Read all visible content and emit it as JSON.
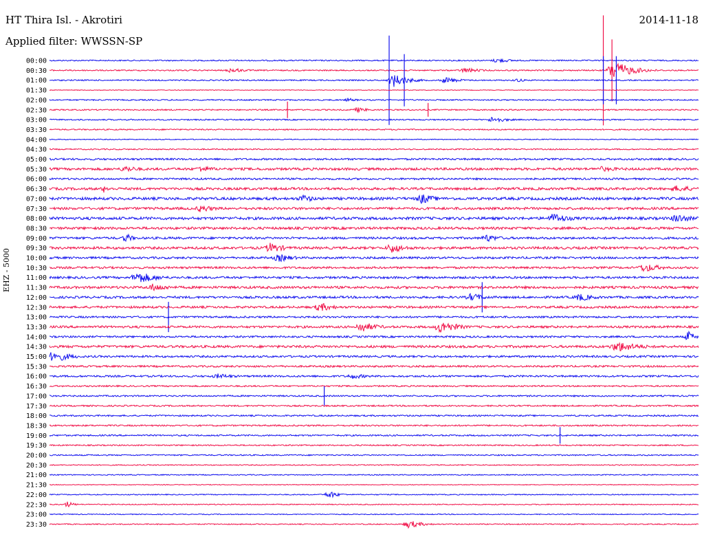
{
  "header": {
    "station": "HT Thira Isl. - Akrotiri",
    "filter": "Applied filter: WWSSN-SP",
    "date": "2014-11-18",
    "channel": "EHZ - 5000"
  },
  "colors": {
    "even_row": "#1010ee",
    "odd_row": "#f01048"
  },
  "chart_data": {
    "type": "line",
    "title": "HT Thira Isl. - Akrotiri",
    "subtitle": "Applied filter: WWSSN-SP",
    "ylabel": "EHZ - 5000",
    "x_span_minutes": 30,
    "y_tick_labels": [
      "00:00",
      "00:30",
      "01:00",
      "01:30",
      "02:00",
      "02:30",
      "03:00",
      "03:30",
      "04:00",
      "04:30",
      "05:00",
      "05:30",
      "06:00",
      "06:30",
      "07:00",
      "07:30",
      "08:00",
      "08:30",
      "09:00",
      "09:30",
      "10:00",
      "10:30",
      "11:00",
      "11:30",
      "12:00",
      "12:30",
      "13:00",
      "13:30",
      "14:00",
      "14:30",
      "15:00",
      "15:30",
      "16:00",
      "16:30",
      "17:00",
      "17:30",
      "18:00",
      "18:30",
      "19:00",
      "19:30",
      "20:00",
      "20:30",
      "21:00",
      "21:30",
      "22:00",
      "22:30",
      "23:00",
      "23:30"
    ],
    "noise_level": [
      1,
      1,
      1,
      0.5,
      1,
      1,
      1,
      1,
      0.7,
      1,
      1.5,
      2,
      1.5,
      2,
      2.2,
      2,
      2.2,
      2,
      1.8,
      2,
      1.7,
      1.7,
      1.8,
      2,
      1.8,
      1.8,
      1.5,
      1.8,
      1.5,
      2,
      1.6,
      1.5,
      1.5,
      1.2,
      1.2,
      1.2,
      1.2,
      1.2,
      1.2,
      1.0,
      1.0,
      0.8,
      0.8,
      0.6,
      0.8,
      0.8,
      0.7,
      0.8
    ],
    "events": [
      {
        "row": 0,
        "minute": 20.7,
        "amp": 4,
        "duration": 1.2,
        "kind": "burst"
      },
      {
        "row": 1,
        "minute": 8.4,
        "amp": 4,
        "duration": 1.2,
        "kind": "burst"
      },
      {
        "row": 1,
        "minute": 19.2,
        "amp": 4,
        "duration": 1.4,
        "kind": "burst"
      },
      {
        "row": 1,
        "minute": 26.1,
        "amp": 14,
        "duration": 1.5,
        "kind": "burst"
      },
      {
        "row": 1,
        "minute": 25.6,
        "amp": 80,
        "duration": 0.1,
        "kind": "spike"
      },
      {
        "row": 1,
        "minute": 26.0,
        "amp": 45,
        "duration": 0.1,
        "kind": "spike"
      },
      {
        "row": 2,
        "minute": 15.9,
        "amp": 10,
        "duration": 1.2,
        "kind": "burst"
      },
      {
        "row": 2,
        "minute": 18.3,
        "amp": 5,
        "duration": 1.2,
        "kind": "burst"
      },
      {
        "row": 2,
        "minute": 21.6,
        "amp": 3,
        "duration": 0.8,
        "kind": "burst"
      },
      {
        "row": 2,
        "minute": 15.7,
        "amp": 65,
        "duration": 0.1,
        "kind": "spike"
      },
      {
        "row": 2,
        "minute": 16.4,
        "amp": 38,
        "duration": 0.1,
        "kind": "spike"
      },
      {
        "row": 2,
        "minute": 25.6,
        "amp": 35,
        "duration": 0.1,
        "kind": "spike"
      },
      {
        "row": 2,
        "minute": 26.2,
        "amp": 35,
        "duration": 0.1,
        "kind": "spike"
      },
      {
        "row": 4,
        "minute": 13.8,
        "amp": 3,
        "duration": 0.8,
        "kind": "burst"
      },
      {
        "row": 5,
        "minute": 14.2,
        "amp": 4,
        "duration": 1,
        "kind": "burst"
      },
      {
        "row": 5,
        "minute": 11.0,
        "amp": 12,
        "duration": 0.1,
        "kind": "spike"
      },
      {
        "row": 5,
        "minute": 17.5,
        "amp": 10,
        "duration": 0.1,
        "kind": "spike"
      },
      {
        "row": 6,
        "minute": 20.5,
        "amp": 5,
        "duration": 1.2,
        "kind": "burst"
      },
      {
        "row": 11,
        "minute": 3.5,
        "amp": 5,
        "duration": 1.4,
        "kind": "burst"
      },
      {
        "row": 11,
        "minute": 7.0,
        "amp": 5,
        "duration": 1.4,
        "kind": "burst"
      },
      {
        "row": 11,
        "minute": 25.5,
        "amp": 4,
        "duration": 2,
        "kind": "burst"
      },
      {
        "row": 13,
        "minute": 2.5,
        "amp": 6,
        "duration": 0.6,
        "kind": "burst"
      },
      {
        "row": 13,
        "minute": 29.0,
        "amp": 5,
        "duration": 2,
        "kind": "burst"
      },
      {
        "row": 14,
        "minute": 11.7,
        "amp": 6,
        "duration": 1.2,
        "kind": "burst"
      },
      {
        "row": 14,
        "minute": 17.2,
        "amp": 8,
        "duration": 1.2,
        "kind": "burst"
      },
      {
        "row": 15,
        "minute": 7.0,
        "amp": 6,
        "duration": 1.2,
        "kind": "burst"
      },
      {
        "row": 16,
        "minute": 23.3,
        "amp": 8,
        "duration": 1.4,
        "kind": "burst"
      },
      {
        "row": 16,
        "minute": 29.0,
        "amp": 7,
        "duration": 1.4,
        "kind": "burst"
      },
      {
        "row": 18,
        "minute": 3.5,
        "amp": 8,
        "duration": 0.6,
        "kind": "burst"
      },
      {
        "row": 18,
        "minute": 20.2,
        "amp": 6,
        "duration": 1.2,
        "kind": "burst"
      },
      {
        "row": 19,
        "minute": 10.2,
        "amp": 8,
        "duration": 1.2,
        "kind": "burst"
      },
      {
        "row": 19,
        "minute": 15.8,
        "amp": 8,
        "duration": 1.2,
        "kind": "burst"
      },
      {
        "row": 20,
        "minute": 10.6,
        "amp": 6,
        "duration": 1.4,
        "kind": "burst"
      },
      {
        "row": 21,
        "minute": 27.5,
        "amp": 7,
        "duration": 1.4,
        "kind": "burst"
      },
      {
        "row": 22,
        "minute": 4.1,
        "amp": 9,
        "duration": 1.6,
        "kind": "burst"
      },
      {
        "row": 23,
        "minute": 4.8,
        "amp": 6,
        "duration": 1.6,
        "kind": "burst"
      },
      {
        "row": 24,
        "minute": 19.5,
        "amp": 6,
        "duration": 1.4,
        "kind": "burst"
      },
      {
        "row": 24,
        "minute": 24.5,
        "amp": 6,
        "duration": 1.4,
        "kind": "burst"
      },
      {
        "row": 24,
        "minute": 20.0,
        "amp": 22,
        "duration": 0.1,
        "kind": "spike"
      },
      {
        "row": 25,
        "minute": 12.5,
        "amp": 7,
        "duration": 1.2,
        "kind": "burst"
      },
      {
        "row": 26,
        "minute": 5.5,
        "amp": 22,
        "duration": 0.1,
        "kind": "spike"
      },
      {
        "row": 27,
        "minute": 14.4,
        "amp": 8,
        "duration": 1.4,
        "kind": "burst"
      },
      {
        "row": 27,
        "minute": 18.1,
        "amp": 10,
        "duration": 1.4,
        "kind": "burst"
      },
      {
        "row": 28,
        "minute": 29.5,
        "amp": 9,
        "duration": 0.6,
        "kind": "burst"
      },
      {
        "row": 29,
        "minute": 26.3,
        "amp": 8,
        "duration": 2,
        "kind": "burst"
      },
      {
        "row": 30,
        "minute": 0.2,
        "amp": 9,
        "duration": 1.4,
        "kind": "burst"
      },
      {
        "row": 32,
        "minute": 7.8,
        "amp": 4,
        "duration": 1.6,
        "kind": "burst"
      },
      {
        "row": 32,
        "minute": 14.0,
        "amp": 4,
        "duration": 1.6,
        "kind": "burst"
      },
      {
        "row": 34,
        "minute": 12.7,
        "amp": 14,
        "duration": 0.1,
        "kind": "spike"
      },
      {
        "row": 38,
        "minute": 23.6,
        "amp": 12,
        "duration": 0.1,
        "kind": "spike"
      },
      {
        "row": 44,
        "minute": 12.9,
        "amp": 6,
        "duration": 0.8,
        "kind": "burst"
      },
      {
        "row": 45,
        "minute": 0.8,
        "amp": 5,
        "duration": 0.6,
        "kind": "burst"
      },
      {
        "row": 47,
        "minute": 16.6,
        "amp": 6,
        "duration": 1.2,
        "kind": "burst"
      }
    ]
  }
}
